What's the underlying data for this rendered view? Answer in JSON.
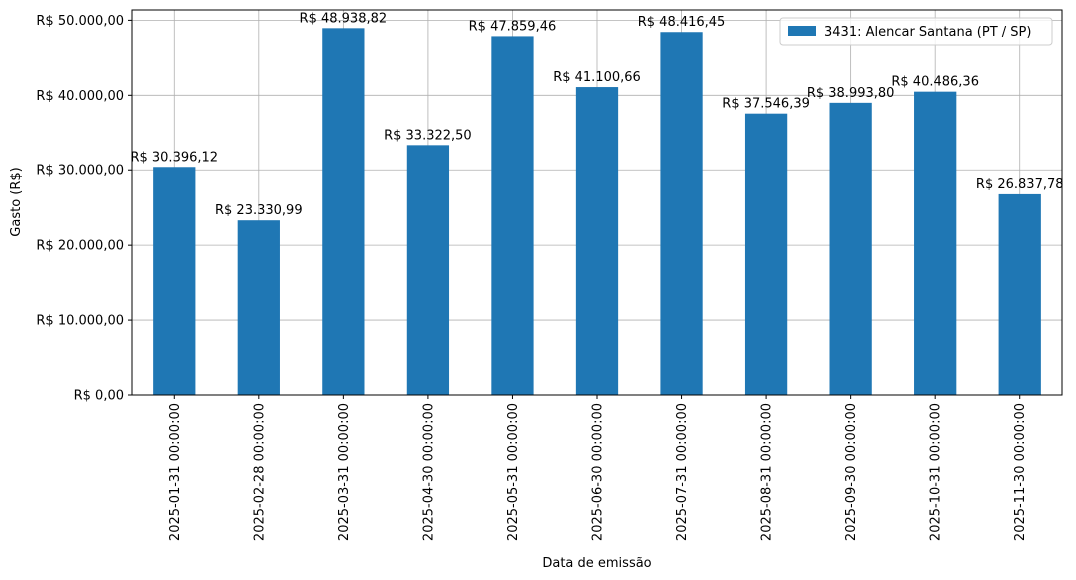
{
  "chart_data": {
    "type": "bar",
    "xlabel": "Data de emissão",
    "ylabel": "Gasto (R$)",
    "categories": [
      "2025-01-31 00:00:00",
      "2025-02-28 00:00:00",
      "2025-03-31 00:00:00",
      "2025-04-30 00:00:00",
      "2025-05-31 00:00:00",
      "2025-06-30 00:00:00",
      "2025-07-31 00:00:00",
      "2025-08-31 00:00:00",
      "2025-09-30 00:00:00",
      "2025-10-31 00:00:00",
      "2025-11-30 00:00:00"
    ],
    "series": [
      {
        "name": "3431: Alencar Santana (PT / SP)",
        "color": "#1f77b4",
        "values": [
          30396.12,
          23330.99,
          48938.82,
          33322.5,
          47859.46,
          41100.66,
          48416.45,
          37546.39,
          38993.8,
          40486.36,
          26837.78
        ],
        "value_labels": [
          "R$ 30.396,12",
          "R$ 23.330,99",
          "R$ 48.938,82",
          "R$ 33.322,50",
          "R$ 47.859,46",
          "R$ 41.100,66",
          "R$ 48.416,45",
          "R$ 37.546,39",
          "R$ 38.993,80",
          "R$ 40.486,36",
          "R$ 26.837,78"
        ]
      }
    ],
    "ylim": [
      0,
      51385.76
    ],
    "yticks": [
      {
        "value": 0,
        "label": "R$ 0,00"
      },
      {
        "value": 10000,
        "label": "R$ 10.000,00"
      },
      {
        "value": 20000,
        "label": "R$ 20.000,00"
      },
      {
        "value": 30000,
        "label": "R$ 30.000,00"
      },
      {
        "value": 40000,
        "label": "R$ 40.000,00"
      },
      {
        "value": 50000,
        "label": "R$ 50.000,00"
      }
    ],
    "grid": true,
    "legend": "upper right"
  }
}
